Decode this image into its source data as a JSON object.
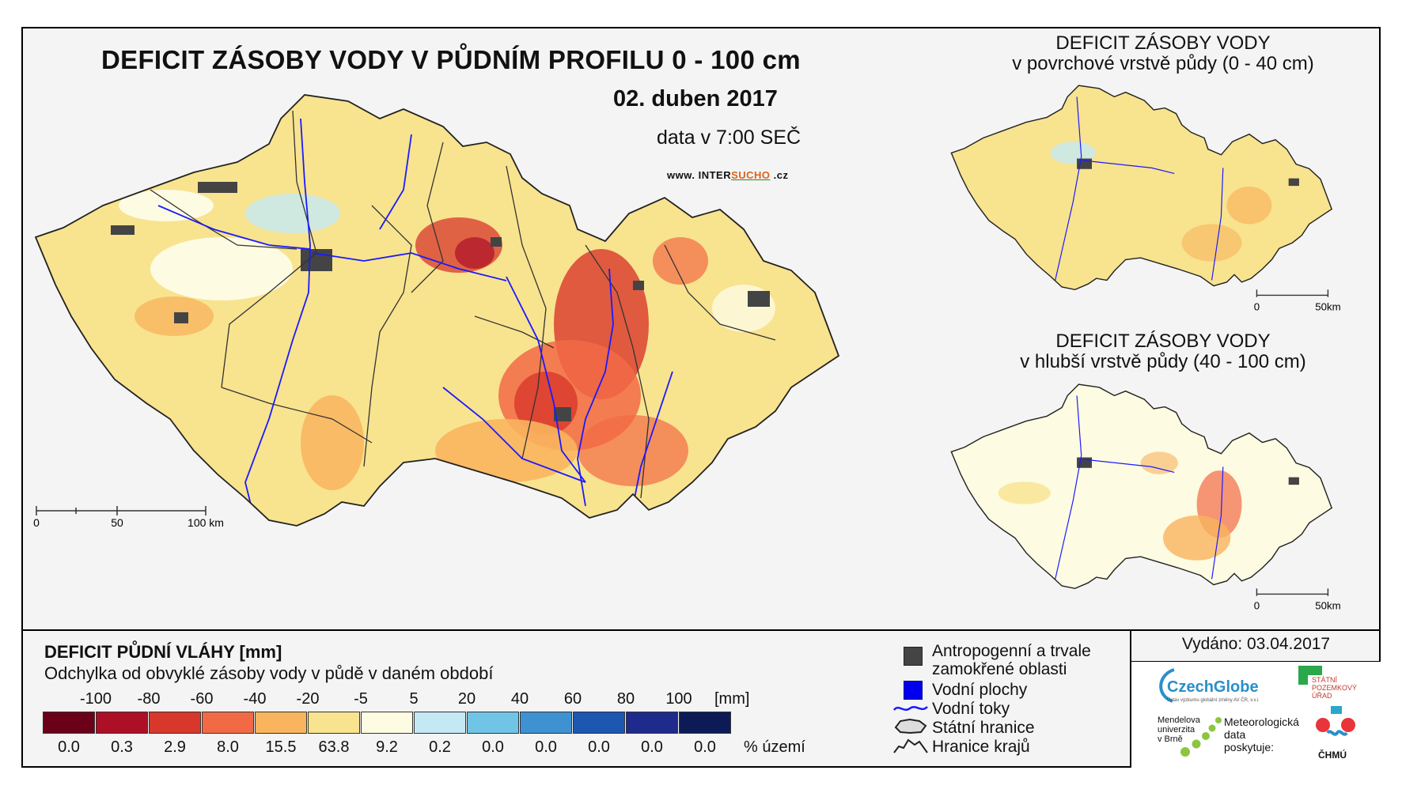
{
  "main": {
    "title": "DEFICIT ZÁSOBY VODY V PŮDNÍM PROFILU 0 - 100 cm",
    "date": "02. duben 2017",
    "time_info": "data v 7:00 SEČ",
    "web_prefix": "www. INTER",
    "web_highlight": "SUCHO",
    "web_suffix": " .cz",
    "scale": {
      "labels": [
        "0",
        "50",
        "100 km"
      ]
    }
  },
  "inset_top": {
    "title_line1": "DEFICIT ZÁSOBY VODY",
    "title_line2": "v povrchové vrstvě půdy (0 - 40 cm)",
    "scale": {
      "labels": [
        "0",
        "50km"
      ]
    }
  },
  "inset_bottom": {
    "title_line1": "DEFICIT ZÁSOBY VODY",
    "title_line2": "v hlubší vrstvě půdy (40 - 100 cm)",
    "scale": {
      "labels": [
        "0",
        "50km"
      ]
    }
  },
  "legend": {
    "title": "DEFICIT PŮDNÍ VLÁHY [mm]",
    "subtitle": "Odchylka od obvyklé zásoby vody v půdě v daném období",
    "ticks": [
      "-100",
      "-80",
      "-60",
      "-40",
      "-20",
      "-5",
      "5",
      "20",
      "40",
      "60",
      "80",
      "100"
    ],
    "unit": "[mm]",
    "classes": [
      {
        "color": "#6b0019",
        "pct": "0.0"
      },
      {
        "color": "#ac0f26",
        "pct": "0.3"
      },
      {
        "color": "#d8372b",
        "pct": "2.9"
      },
      {
        "color": "#f26a45",
        "pct": "8.0"
      },
      {
        "color": "#f9b45e",
        "pct": "15.5"
      },
      {
        "color": "#f8e38f",
        "pct": "63.8"
      },
      {
        "color": "#fdfbe2",
        "pct": "9.2"
      },
      {
        "color": "#c4e9f4",
        "pct": "0.2"
      },
      {
        "color": "#70c4e6",
        "pct": "0.0"
      },
      {
        "color": "#3f92d2",
        "pct": "0.0"
      },
      {
        "color": "#1c57b1",
        "pct": "0.0"
      },
      {
        "color": "#1e2a8c",
        "pct": "0.0"
      },
      {
        "color": "#0c1b55",
        "pct": "0.0"
      }
    ],
    "pct_label": "% území"
  },
  "map_legend": {
    "urban_line1": "Antropogenní a trvale",
    "urban_line2": "zamokřené oblasti",
    "water_bodies": "Vodní plochy",
    "rivers": "Vodní toky",
    "border": "Státní hranice",
    "regions": "Hranice krajů"
  },
  "issued": "Vydáno: 03.04.2017",
  "logos": {
    "czechglobe": "CzechGlobe",
    "czechglobe_sub": "Ústav výzkumu globální změny AV ČR, v.v.i.",
    "spu_line1": "STÁTNÍ",
    "spu_line2": "POZEMKOVÝ",
    "spu_line3": "ÚŘAD",
    "mendel_line1": "Mendelova",
    "mendel_line2": "univerzita",
    "mendel_line3": "v Brně",
    "met_line1": "Meteorologická",
    "met_line2": "data",
    "met_line3": "poskytuje:",
    "chmu": "ČHMÚ"
  }
}
